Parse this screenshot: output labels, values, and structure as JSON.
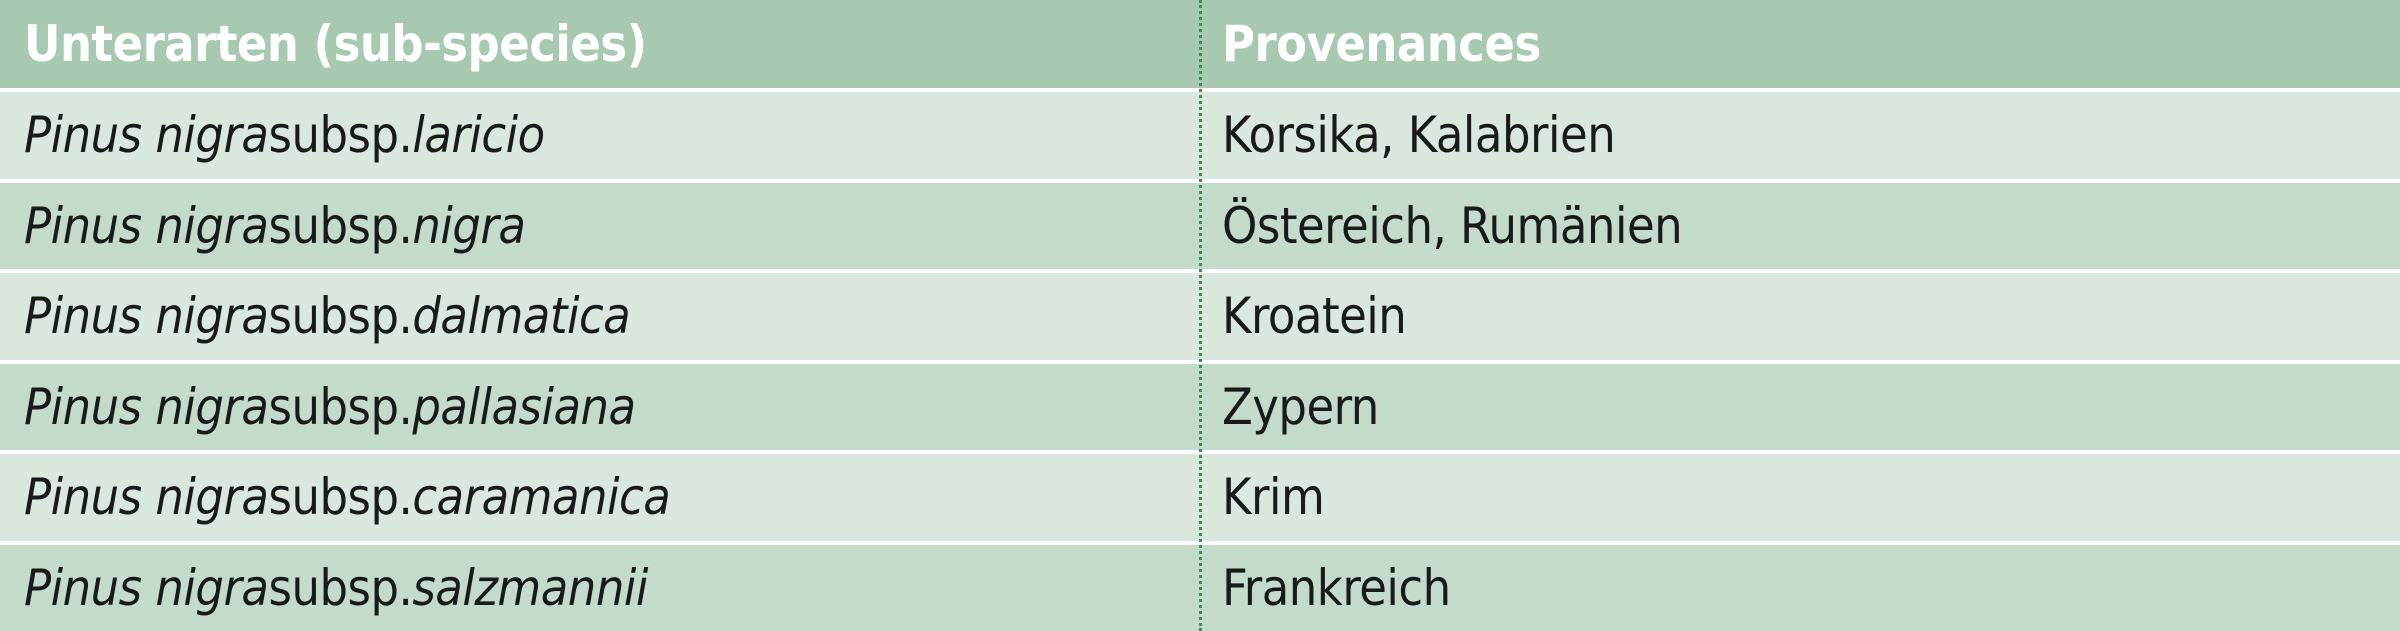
{
  "table": {
    "header": [
      "Unterarten (sub-species)",
      "Provenances"
    ],
    "rows": [
      [
        {
          "genus": "Pinus nigra",
          "rank": "subsp.",
          "epithet": "laricio"
        },
        "Korsika, Kalabrien"
      ],
      [
        {
          "genus": "Pinus nigra",
          "rank": "subsp.",
          "epithet": "nigra"
        },
        "Östereich, Rumänien"
      ],
      [
        {
          "genus": "Pinus nigra",
          "rank": "subsp.",
          "epithet": "dalmatica"
        },
        "Kroatein"
      ],
      [
        {
          "genus": "Pinus nigra",
          "rank": "subsp.",
          "epithet": "pallasiana"
        },
        "Zypern"
      ],
      [
        {
          "genus": "Pinus nigra",
          "rank": "subsp.",
          "epithet": "caramanica"
        },
        "Krim"
      ],
      [
        {
          "genus": "Pinus nigra",
          "rank": "subsp.",
          "epithet": "salzmannii"
        },
        "Frankreich"
      ]
    ]
  }
}
